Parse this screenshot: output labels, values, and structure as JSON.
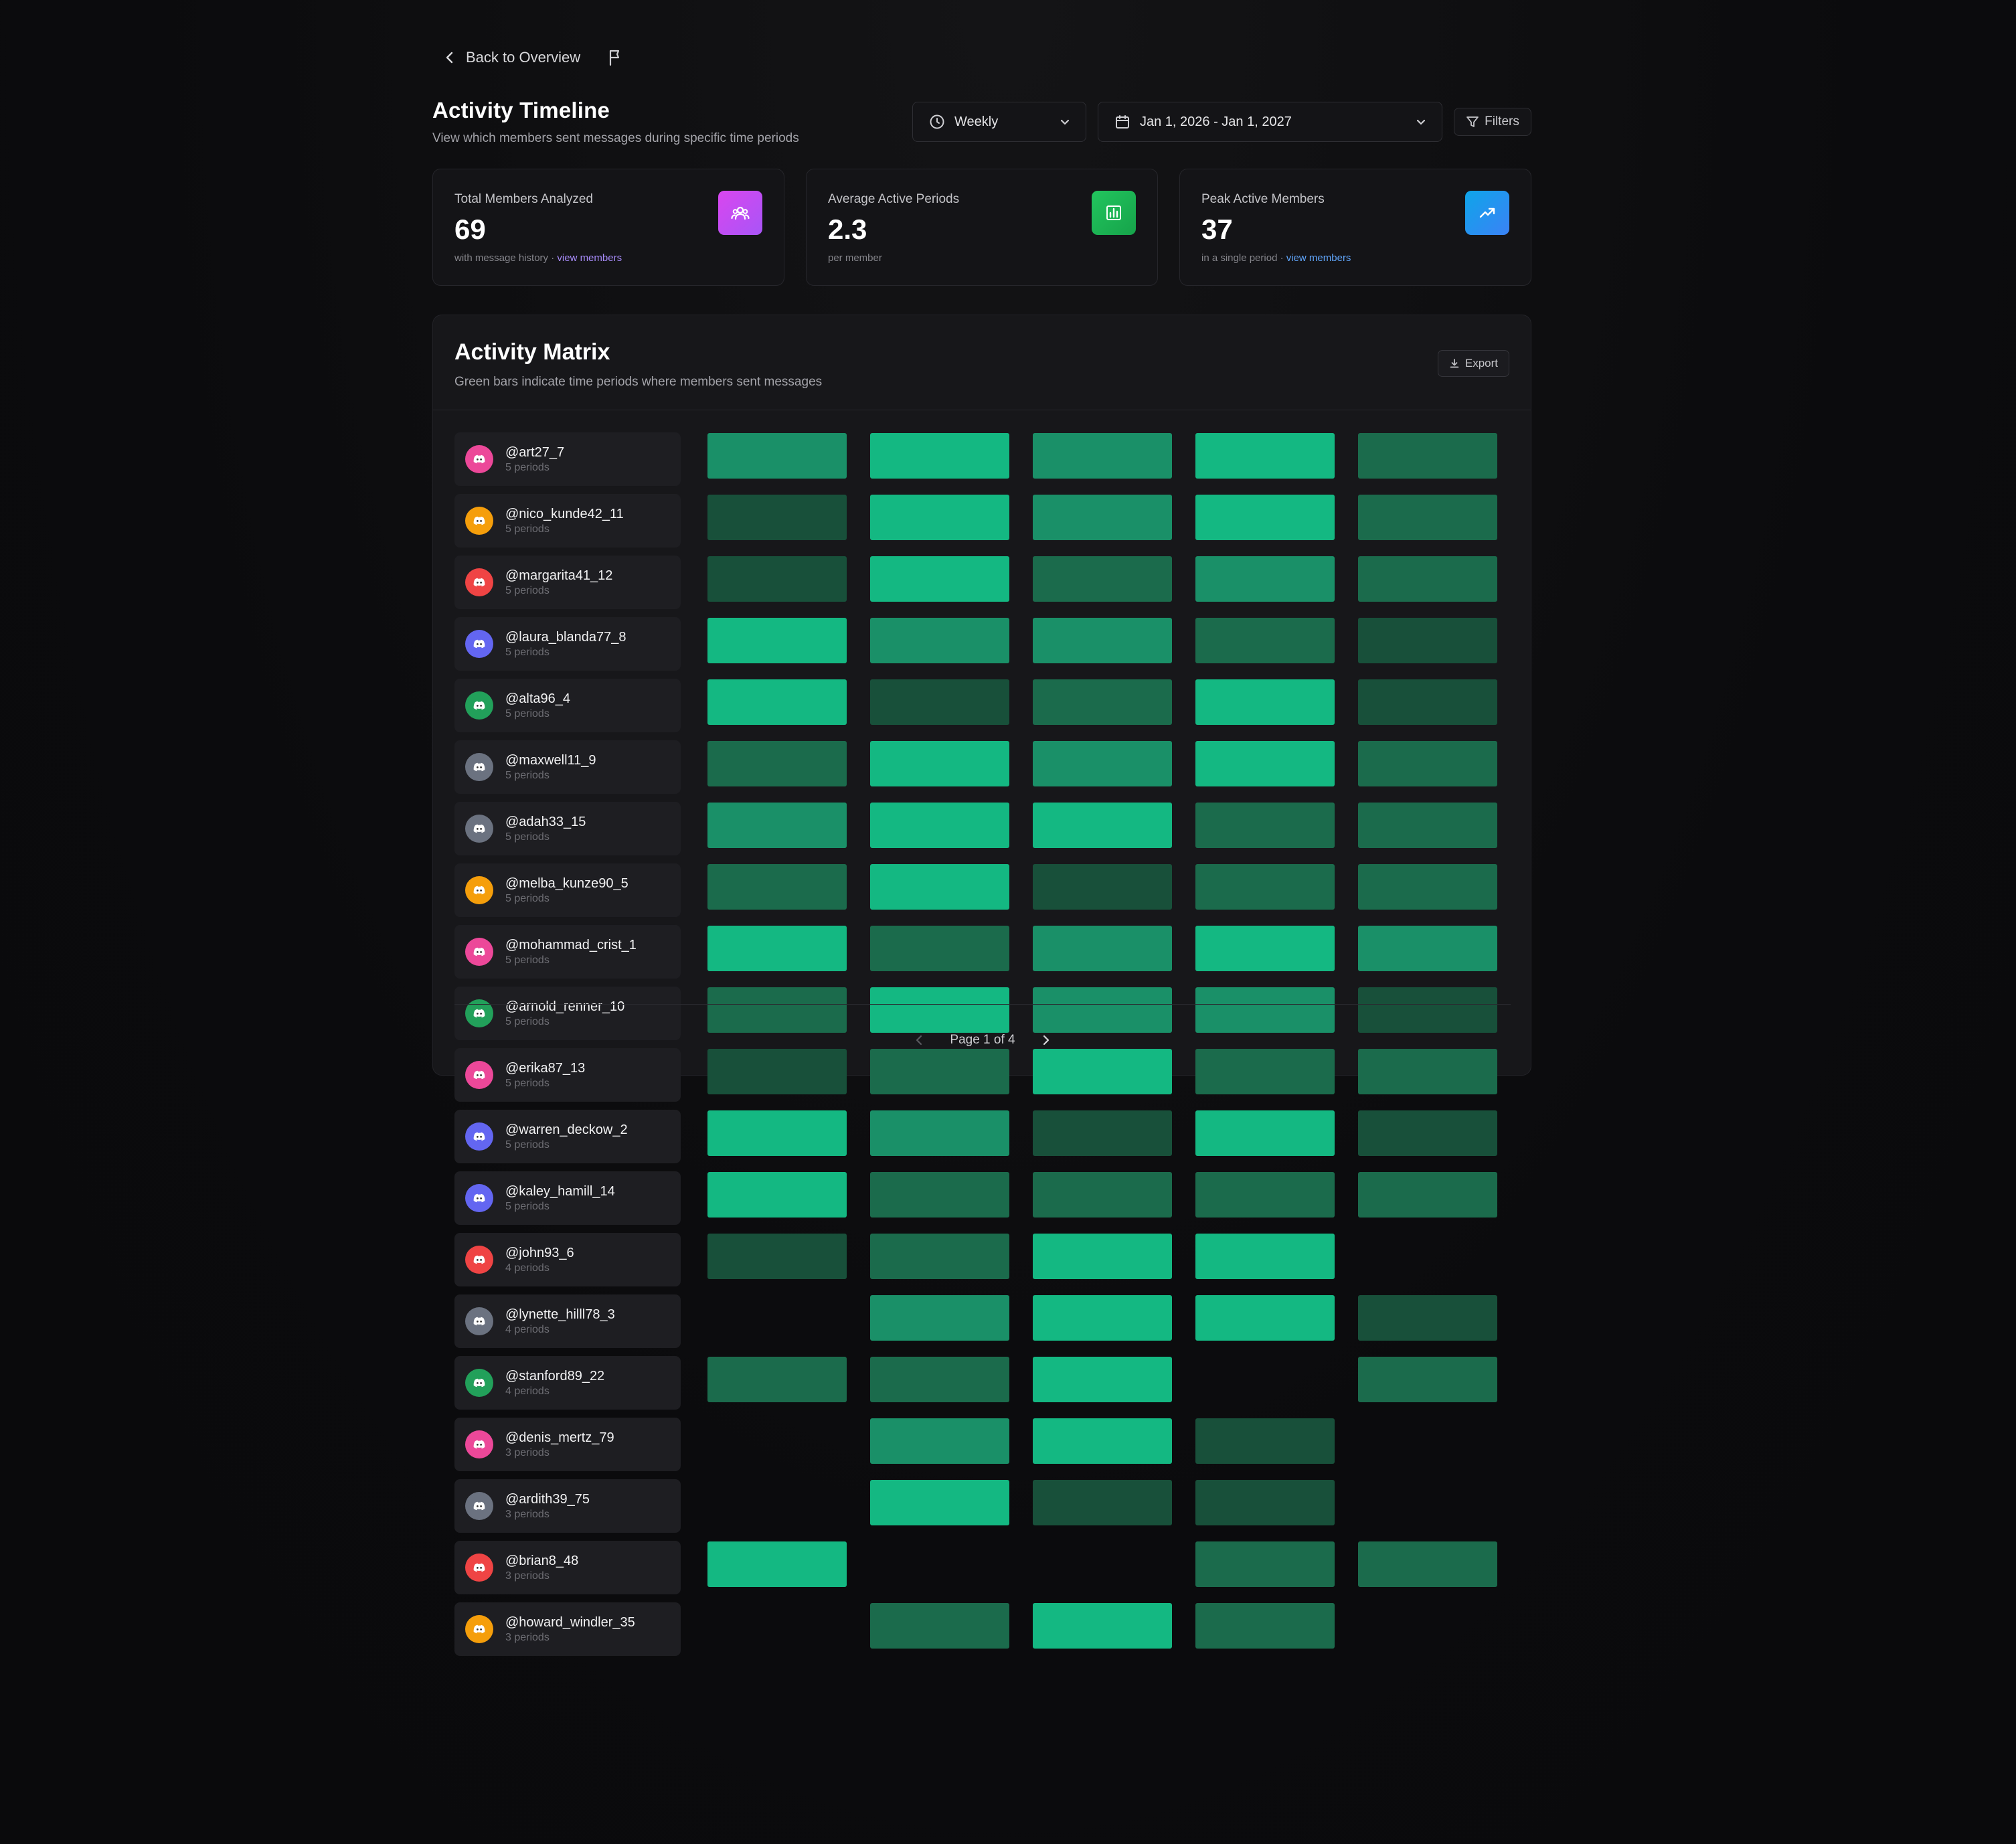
{
  "nav": {
    "back_label": "Back to Overview"
  },
  "header": {
    "title": "Activity Timeline",
    "subtitle": "View which members sent messages during specific time periods"
  },
  "controls": {
    "period": "Weekly",
    "date_range": "Jan 1, 2026 - Jan 1, 2027",
    "filters_label": "Filters"
  },
  "stats": [
    {
      "label": "Total Members Analyzed",
      "value": "69",
      "foot_text": "with message history · ",
      "foot_link": "view members",
      "icon": "users-icon",
      "color": "#d946ef"
    },
    {
      "label": "Average Active Periods",
      "value": "2.3",
      "foot_text": "per member",
      "foot_link": "",
      "icon": "bar-chart-icon",
      "color": "#22c55e"
    },
    {
      "label": "Peak Active Members",
      "value": "37",
      "foot_text": "in a single period · ",
      "foot_link": "view members",
      "icon": "trending-up-icon",
      "color": "#0ea5e9"
    }
  ],
  "matrix": {
    "title": "Activity Matrix",
    "subtitle": "Green bars indicate time periods where members sent messages",
    "export_label": "Export",
    "levels": {
      "1": "#18503a",
      "2": "#1b6b4c",
      "3": "#1a9068",
      "4": "#14b882"
    },
    "members": [
      {
        "name": "@art27_7",
        "count": "5 periods",
        "avatar": "#ec4899",
        "cells": [
          3,
          4,
          3,
          4,
          2
        ]
      },
      {
        "name": "@nico_kunde42_11",
        "count": "5 periods",
        "avatar": "#f59e0b",
        "cells": [
          1,
          4,
          3,
          4,
          2
        ]
      },
      {
        "name": "@margarita41_12",
        "count": "5 periods",
        "avatar": "#ef4444",
        "cells": [
          1,
          4,
          2,
          3,
          2
        ]
      },
      {
        "name": "@laura_blanda77_8",
        "count": "5 periods",
        "avatar": "#6366f1",
        "cells": [
          4,
          3,
          3,
          2,
          1
        ]
      },
      {
        "name": "@alta96_4",
        "count": "5 periods",
        "avatar": "#22a05a",
        "cells": [
          4,
          1,
          2,
          4,
          1
        ]
      },
      {
        "name": "@maxwell11_9",
        "count": "5 periods",
        "avatar": "#6b7280",
        "cells": [
          2,
          4,
          3,
          4,
          2
        ]
      },
      {
        "name": "@adah33_15",
        "count": "5 periods",
        "avatar": "#6b7280",
        "cells": [
          3,
          4,
          4,
          2,
          2
        ]
      },
      {
        "name": "@melba_kunze90_5",
        "count": "5 periods",
        "avatar": "#f59e0b",
        "cells": [
          2,
          4,
          1,
          2,
          2
        ]
      },
      {
        "name": "@mohammad_crist_1",
        "count": "5 periods",
        "avatar": "#ec4899",
        "cells": [
          4,
          2,
          3,
          4,
          3
        ]
      },
      {
        "name": "@arnold_renner_10",
        "count": "5 periods",
        "avatar": "#22a05a",
        "cells": [
          2,
          4,
          3,
          3,
          1
        ]
      },
      {
        "name": "@erika87_13",
        "count": "5 periods",
        "avatar": "#ec4899",
        "cells": [
          1,
          2,
          4,
          2,
          2
        ]
      },
      {
        "name": "@warren_deckow_2",
        "count": "5 periods",
        "avatar": "#6366f1",
        "cells": [
          4,
          3,
          1,
          4,
          1
        ]
      },
      {
        "name": "@kaley_hamill_14",
        "count": "5 periods",
        "avatar": "#6366f1",
        "cells": [
          4,
          2,
          2,
          2,
          2
        ]
      },
      {
        "name": "@john93_6",
        "count": "4 periods",
        "avatar": "#ef4444",
        "cells": [
          1,
          2,
          4,
          4,
          0
        ]
      },
      {
        "name": "@lynette_hilll78_3",
        "count": "4 periods",
        "avatar": "#6b7280",
        "cells": [
          0,
          3,
          4,
          4,
          1
        ]
      },
      {
        "name": "@stanford89_22",
        "count": "4 periods",
        "avatar": "#22a05a",
        "cells": [
          2,
          2,
          4,
          0,
          2
        ]
      },
      {
        "name": "@denis_mertz_79",
        "count": "3 periods",
        "avatar": "#ec4899",
        "cells": [
          0,
          3,
          4,
          1,
          0
        ]
      },
      {
        "name": "@ardith39_75",
        "count": "3 periods",
        "avatar": "#6b7280",
        "cells": [
          0,
          4,
          1,
          1,
          0
        ]
      },
      {
        "name": "@brian8_48",
        "count": "3 periods",
        "avatar": "#ef4444",
        "cells": [
          4,
          0,
          0,
          2,
          2
        ]
      },
      {
        "name": "@howard_windler_35",
        "count": "3 periods",
        "avatar": "#f59e0b",
        "cells": [
          0,
          2,
          4,
          2,
          0
        ]
      }
    ]
  },
  "pagination": {
    "label": "Page 1 of 4"
  }
}
